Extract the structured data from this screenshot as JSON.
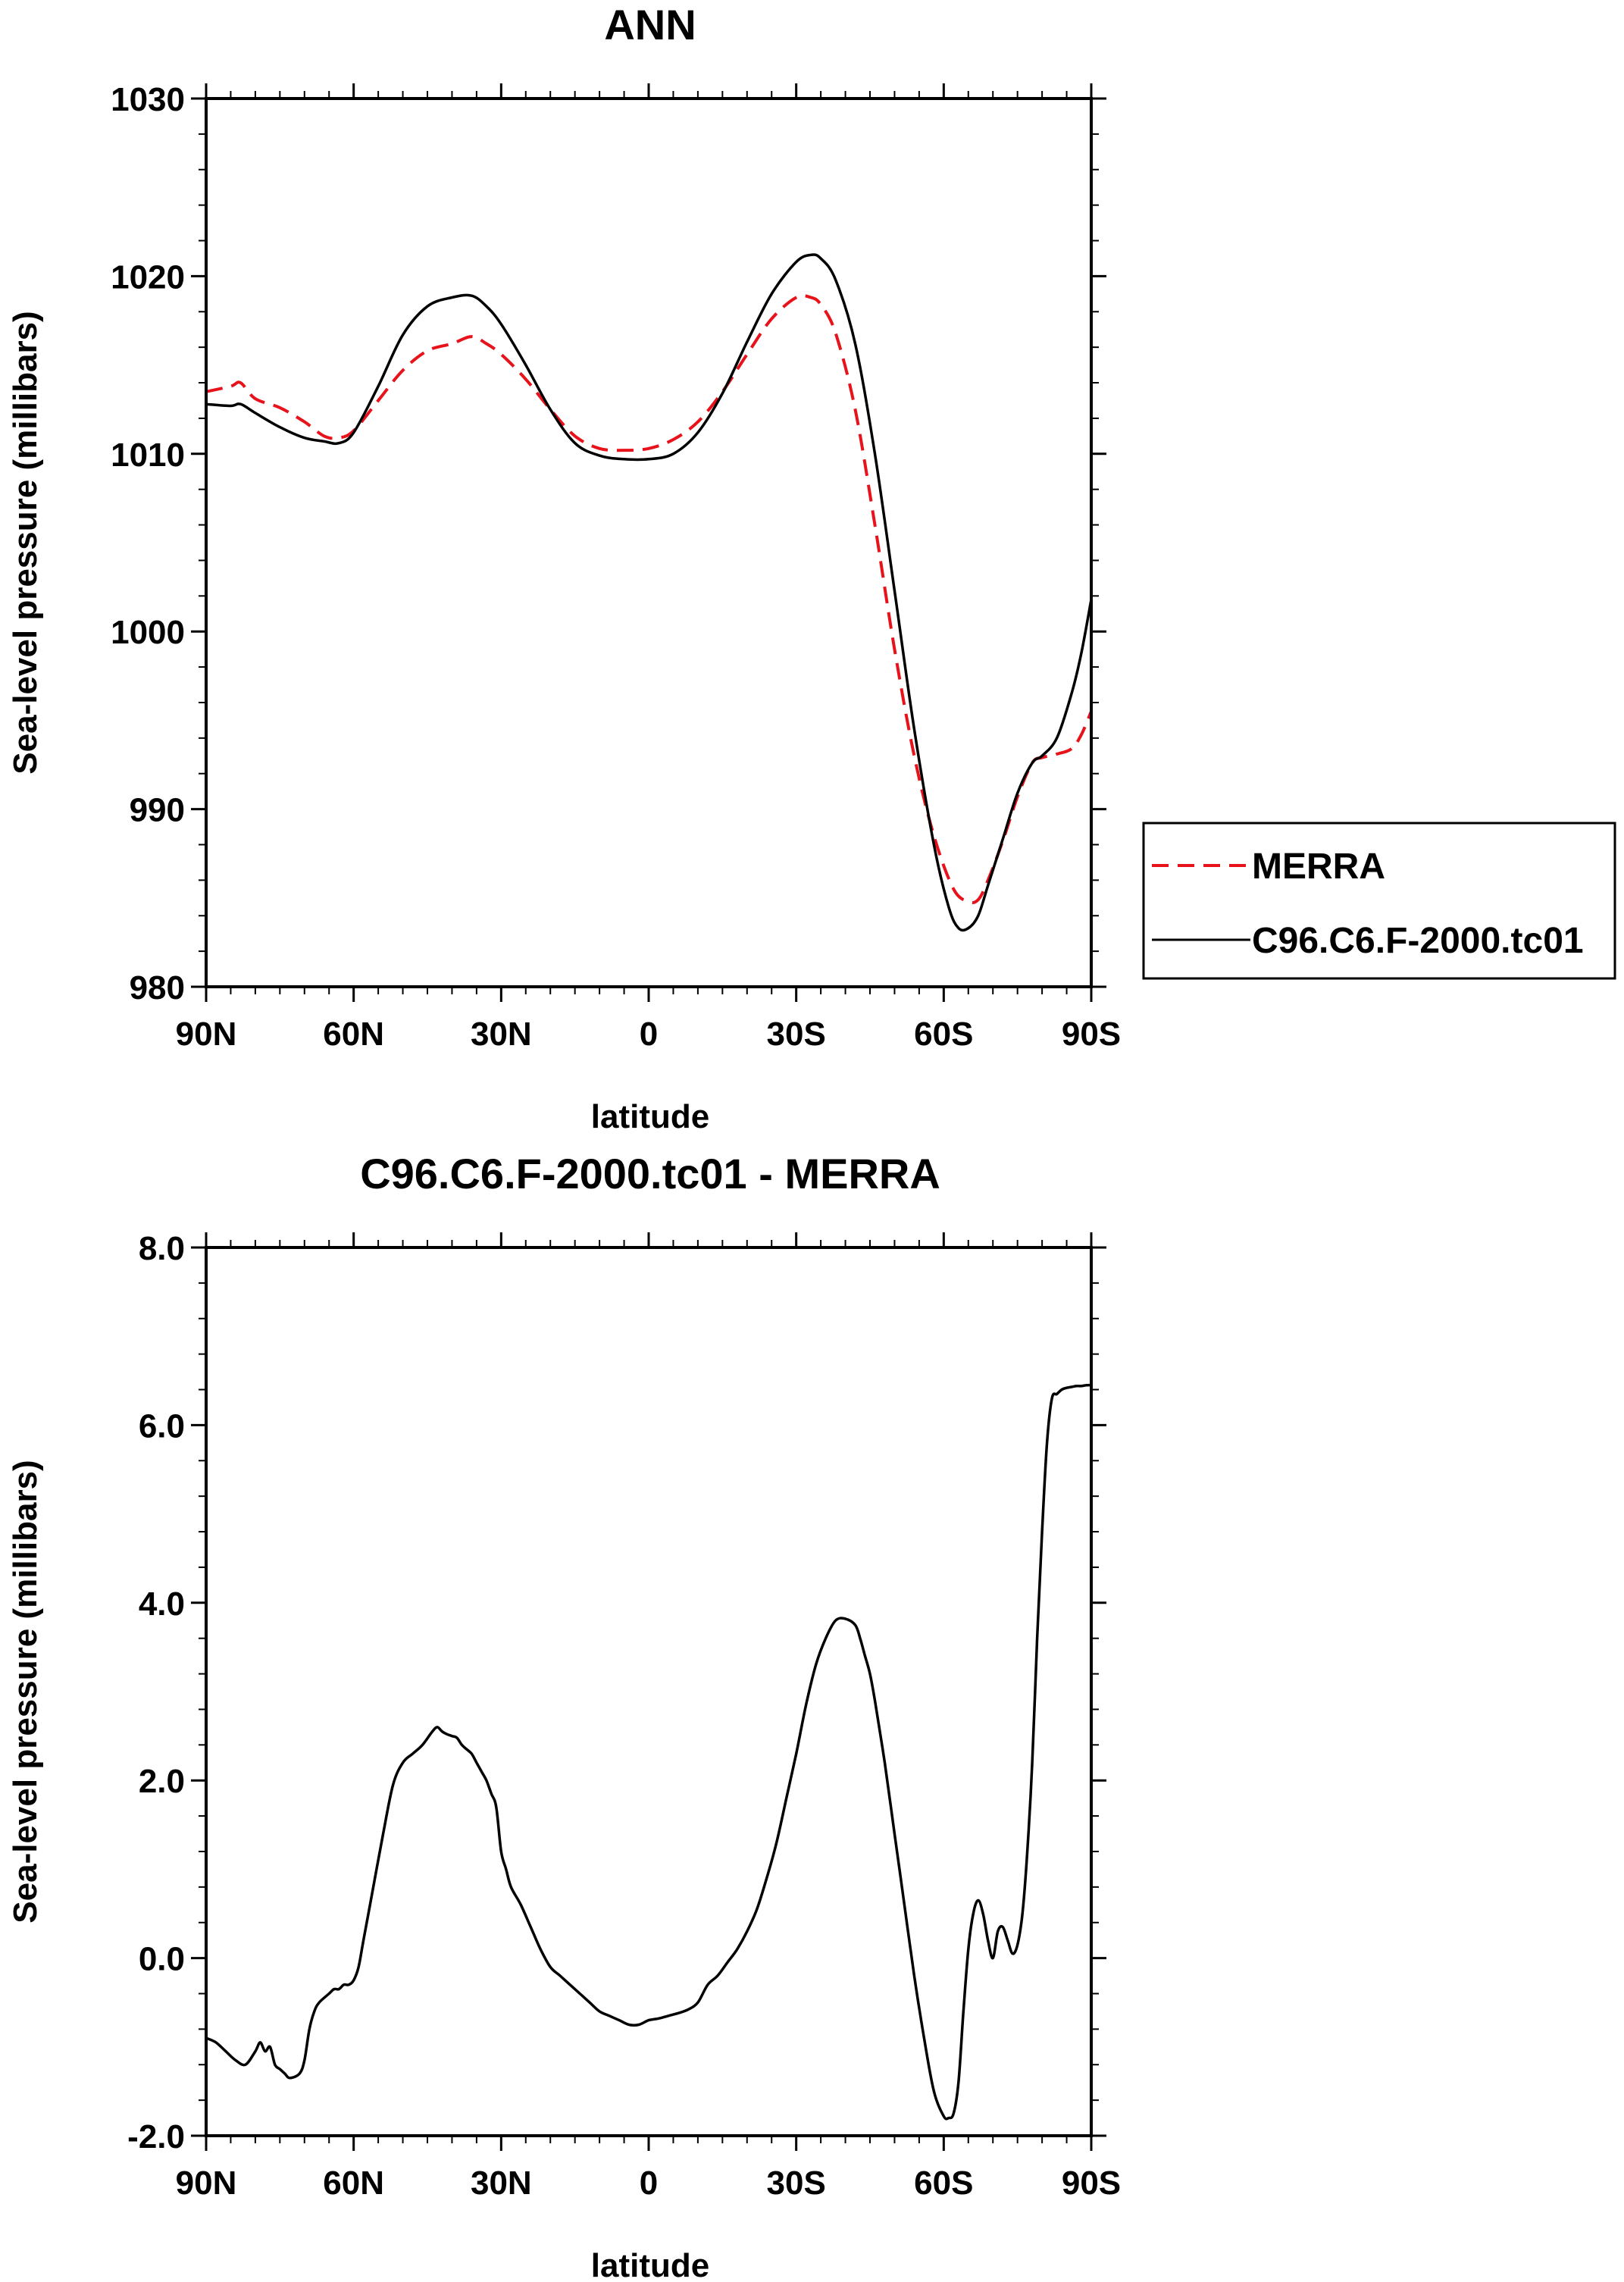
{
  "chart_data": [
    {
      "type": "line",
      "title": "ANN",
      "xlabel": "latitude",
      "ylabel": "Sea-level pressure (millibars)",
      "xlim": [
        90,
        -90
      ],
      "ylim": [
        980,
        1030
      ],
      "x_ticks": [
        {
          "value": 90,
          "label": "90N"
        },
        {
          "value": 60,
          "label": "60N"
        },
        {
          "value": 30,
          "label": "30N"
        },
        {
          "value": 0,
          "label": "0"
        },
        {
          "value": -30,
          "label": "30S"
        },
        {
          "value": -60,
          "label": "60S"
        },
        {
          "value": -90,
          "label": "90S"
        }
      ],
      "y_ticks": [
        {
          "value": 980,
          "label": "980"
        },
        {
          "value": 990,
          "label": "990"
        },
        {
          "value": 1000,
          "label": "1000"
        },
        {
          "value": 1010,
          "label": "1010"
        },
        {
          "value": 1020,
          "label": "1020"
        },
        {
          "value": 1030,
          "label": "1030"
        }
      ],
      "legend": {
        "position": "right"
      },
      "series": [
        {
          "name": "MERRA",
          "color": "#e8121b",
          "dash": "dashed",
          "x": [
            90,
            85,
            83,
            80,
            75,
            70,
            66,
            63,
            60,
            55,
            50,
            45,
            40,
            36,
            33,
            30,
            25,
            20,
            15,
            10,
            5,
            0,
            -5,
            -10,
            -15,
            -20,
            -25,
            -30,
            -33,
            -35,
            -38,
            -42,
            -46,
            -50,
            -54,
            -58,
            -62,
            -65,
            -67,
            -69,
            -72,
            -75,
            -78,
            -80,
            -83,
            -86,
            -88,
            -90
          ],
          "y": [
            1013.5,
            1013.8,
            1014.0,
            1013.1,
            1012.6,
            1011.8,
            1011.0,
            1010.9,
            1011.3,
            1013.0,
            1014.7,
            1015.8,
            1016.2,
            1016.6,
            1016.2,
            1015.6,
            1014.2,
            1012.5,
            1011.0,
            1010.3,
            1010.2,
            1010.3,
            1010.8,
            1011.8,
            1013.5,
            1015.6,
            1017.6,
            1018.8,
            1018.8,
            1018.4,
            1016.8,
            1012.5,
            1006.0,
            999.0,
            993.0,
            988.5,
            985.5,
            984.8,
            984.9,
            986.0,
            988.2,
            990.7,
            992.6,
            992.9,
            993.1,
            993.4,
            994.2,
            995.5
          ]
        },
        {
          "name": "C96.C6.F-2000.tc01",
          "color": "#000000",
          "dash": "solid",
          "x": [
            90,
            85,
            83,
            80,
            75,
            70,
            66,
            63,
            60,
            55,
            50,
            45,
            40,
            36,
            33,
            30,
            25,
            20,
            15,
            10,
            5,
            0,
            -5,
            -10,
            -15,
            -20,
            -25,
            -30,
            -33,
            -35,
            -38,
            -42,
            -46,
            -50,
            -54,
            -58,
            -61,
            -63,
            -65,
            -67,
            -69,
            -72,
            -75,
            -78,
            -80,
            -83,
            -86,
            -88,
            -90
          ],
          "y": [
            1012.8,
            1012.7,
            1012.8,
            1012.3,
            1011.5,
            1010.9,
            1010.7,
            1010.6,
            1011.2,
            1013.8,
            1016.7,
            1018.3,
            1018.8,
            1018.9,
            1018.3,
            1017.3,
            1015.0,
            1012.5,
            1010.6,
            1009.9,
            1009.7,
            1009.7,
            1010.0,
            1011.2,
            1013.4,
            1016.3,
            1019.0,
            1020.8,
            1021.2,
            1021.0,
            1019.8,
            1016.2,
            1010.0,
            1002.3,
            994.5,
            988.0,
            984.5,
            983.3,
            983.3,
            984.0,
            985.7,
            988.3,
            990.9,
            992.6,
            993.0,
            994.0,
            996.5,
            998.8,
            1001.8
          ]
        }
      ]
    },
    {
      "type": "line",
      "title": "C96.C6.F-2000.tc01 - MERRA",
      "xlabel": "latitude",
      "ylabel": "Sea-level pressure (millibars)",
      "xlim": [
        90,
        -90
      ],
      "ylim": [
        -2.0,
        8.0
      ],
      "x_ticks": [
        {
          "value": 90,
          "label": "90N"
        },
        {
          "value": 60,
          "label": "60N"
        },
        {
          "value": 30,
          "label": "30N"
        },
        {
          "value": 0,
          "label": "0"
        },
        {
          "value": -30,
          "label": "30S"
        },
        {
          "value": -60,
          "label": "60S"
        },
        {
          "value": -90,
          "label": "90S"
        }
      ],
      "y_ticks": [
        {
          "value": -2,
          "label": "-2.0"
        },
        {
          "value": 0,
          "label": "0.0"
        },
        {
          "value": 2,
          "label": "2.0"
        },
        {
          "value": 4,
          "label": "4.0"
        },
        {
          "value": 6,
          "label": "6.0"
        },
        {
          "value": 8,
          "label": "8.0"
        }
      ],
      "series": [
        {
          "name": "C96.C6.F-2000.tc01 - MERRA",
          "color": "#000000",
          "dash": "solid",
          "x": [
            90,
            88,
            86,
            84,
            82,
            80,
            79,
            78,
            77,
            76,
            75,
            74,
            73,
            71,
            70,
            69,
            68,
            67,
            65,
            64,
            63,
            62,
            61,
            60,
            59,
            58,
            56,
            54,
            52,
            50,
            48,
            46,
            44,
            43,
            42,
            41,
            40,
            39,
            38,
            37,
            36,
            35,
            34,
            33,
            32,
            31,
            30,
            29,
            28,
            26,
            24,
            22,
            20,
            18,
            16,
            14,
            12,
            10,
            8,
            6,
            4,
            2,
            0,
            -2,
            -4,
            -6,
            -8,
            -10,
            -12,
            -14,
            -16,
            -18,
            -20,
            -22,
            -24,
            -26,
            -28,
            -30,
            -32,
            -34,
            -36,
            -38,
            -40,
            -42,
            -43,
            -44,
            -45,
            -46,
            -48,
            -50,
            -52,
            -54,
            -56,
            -58,
            -60,
            -61,
            -62,
            -63,
            -64,
            -65,
            -66,
            -67,
            -68,
            -69,
            -70,
            -71,
            -72,
            -73,
            -74,
            -75,
            -76,
            -77,
            -78,
            -79,
            -80,
            -81,
            -82,
            -83,
            -84,
            -85,
            -86,
            -87,
            -88,
            -89,
            -90
          ],
          "y": [
            -0.9,
            -0.95,
            -1.05,
            -1.15,
            -1.2,
            -1.05,
            -0.95,
            -1.05,
            -1.0,
            -1.2,
            -1.25,
            -1.3,
            -1.35,
            -1.3,
            -1.15,
            -0.8,
            -0.6,
            -0.5,
            -0.4,
            -0.35,
            -0.35,
            -0.3,
            -0.3,
            -0.25,
            -0.1,
            0.2,
            0.8,
            1.4,
            1.95,
            2.2,
            2.3,
            2.4,
            2.55,
            2.6,
            2.55,
            2.52,
            2.5,
            2.48,
            2.4,
            2.35,
            2.3,
            2.2,
            2.1,
            2.0,
            1.85,
            1.7,
            1.2,
            1.0,
            0.8,
            0.6,
            0.35,
            0.1,
            -0.1,
            -0.2,
            -0.3,
            -0.4,
            -0.5,
            -0.6,
            -0.65,
            -0.7,
            -0.75,
            -0.75,
            -0.7,
            -0.68,
            -0.65,
            -0.62,
            -0.58,
            -0.5,
            -0.3,
            -0.2,
            -0.05,
            0.1,
            0.3,
            0.55,
            0.9,
            1.3,
            1.8,
            2.3,
            2.85,
            3.3,
            3.6,
            3.8,
            3.82,
            3.75,
            3.6,
            3.4,
            3.2,
            2.9,
            2.2,
            1.4,
            0.6,
            -0.2,
            -0.9,
            -1.5,
            -1.78,
            -1.8,
            -1.75,
            -1.4,
            -0.6,
            0.1,
            0.5,
            0.65,
            0.5,
            0.2,
            0.0,
            0.3,
            0.35,
            0.2,
            0.05,
            0.15,
            0.5,
            1.2,
            2.2,
            3.6,
            4.8,
            5.8,
            6.3,
            6.35,
            6.4,
            6.42,
            6.43,
            6.44,
            6.44,
            6.45,
            6.45
          ]
        }
      ]
    }
  ]
}
